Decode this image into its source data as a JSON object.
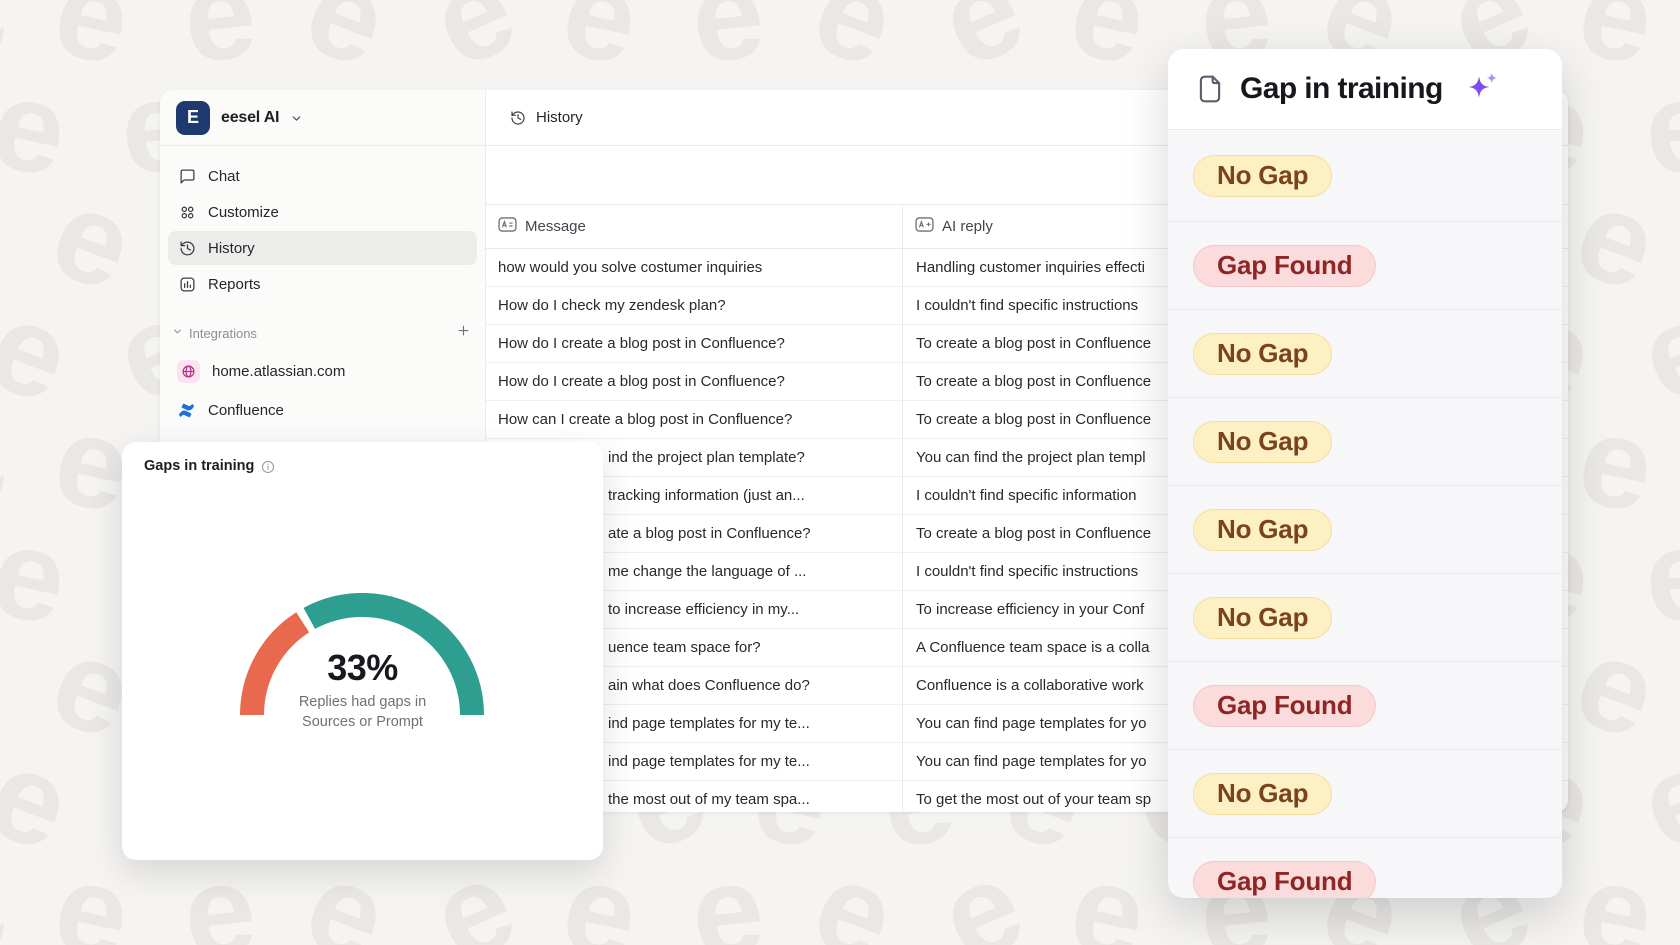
{
  "background": {
    "watermark_glyph": "e"
  },
  "workspace": {
    "name": "eesel AI"
  },
  "sidebar": {
    "nav": [
      {
        "icon": "chat-icon",
        "label": "Chat",
        "selected": false
      },
      {
        "icon": "customize-icon",
        "label": "Customize",
        "selected": false
      },
      {
        "icon": "history-icon",
        "label": "History",
        "selected": true
      },
      {
        "icon": "reports-icon",
        "label": "Reports",
        "selected": false
      }
    ],
    "integrations_label": "Integrations",
    "integrations": [
      {
        "icon": "globe-icon",
        "label": "home.atlassian.com"
      },
      {
        "icon": "confluence-icon",
        "label": "Confluence"
      }
    ]
  },
  "main": {
    "header_title": "History",
    "table": {
      "message_col": "Message",
      "reply_col": "AI reply",
      "rows": [
        {
          "message": "how would you solve costumer inquiries",
          "reply": "Handling customer inquiries effecti",
          "covered": false
        },
        {
          "message": "How do I check my zendesk plan?",
          "reply": "I couldn't find specific instructions",
          "covered": false
        },
        {
          "message": "How do I create a blog post in Confluence?",
          "reply": "To create a blog post in Confluence",
          "covered": false
        },
        {
          "message": "How do I create a blog post in Confluence?",
          "reply": "To create a blog post in Confluence",
          "covered": false
        },
        {
          "message": "How can I create a blog post in Confluence?",
          "reply": "To create a blog post in Confluence",
          "covered": false
        },
        {
          "message": "ind the project plan template?",
          "reply": "You can find the project plan templ",
          "covered": true
        },
        {
          "message": "tracking information (just an...",
          "reply": "I couldn't find specific information",
          "covered": true
        },
        {
          "message": "ate a blog post in Confluence?",
          "reply": "To create a blog post in Confluence",
          "covered": true
        },
        {
          "message": "me change the language of ...",
          "reply": "I couldn't find specific instructions",
          "covered": true
        },
        {
          "message": "to increase efficiency in my...",
          "reply": "To increase efficiency in your Conf",
          "covered": true
        },
        {
          "message": "uence team space for?",
          "reply": "A Confluence team space is a colla",
          "covered": true
        },
        {
          "message": "ain what does Confluence do?",
          "reply": "Confluence is a collaborative work",
          "covered": true
        },
        {
          "message": "ind page templates for my te...",
          "reply": "You can find page templates for yo",
          "covered": true
        },
        {
          "message": "ind page templates for my te...",
          "reply": "You can find page templates for yo",
          "covered": true
        },
        {
          "message": "the most out of my team spa...",
          "reply": "To get the most out of your team sp",
          "covered": true
        }
      ]
    }
  },
  "gauge_card": {
    "title": "Gaps in training",
    "value_label": "33%",
    "subtitle_line1": "Replies had gaps in",
    "subtitle_line2": "Sources or Prompt",
    "chart_data": {
      "type": "gauge",
      "value_pct": 33,
      "segments": [
        {
          "name": "Replies with gaps",
          "pct": 33,
          "color": "#E8694E"
        },
        {
          "name": "Replies without gaps",
          "pct": 67,
          "color": "#2D9E90"
        }
      ],
      "title": "Gaps in training",
      "center_label": "33%",
      "center_sublabel": "Replies had gaps in Sources or Prompt"
    }
  },
  "gap_panel": {
    "title": "Gap in training",
    "badges": [
      {
        "label": "No Gap",
        "type": "no-gap"
      },
      {
        "label": "Gap Found",
        "type": "gap-found"
      },
      {
        "label": "No Gap",
        "type": "no-gap"
      },
      {
        "label": "No Gap",
        "type": "no-gap"
      },
      {
        "label": "No Gap",
        "type": "no-gap"
      },
      {
        "label": "No Gap",
        "type": "no-gap"
      },
      {
        "label": "Gap Found",
        "type": "gap-found"
      },
      {
        "label": "No Gap",
        "type": "no-gap"
      },
      {
        "label": "Gap Found",
        "type": "gap-found"
      }
    ]
  },
  "colors": {
    "logo_navy": "#1E3A6F",
    "gauge_orange": "#E8694E",
    "gauge_teal": "#2D9E90",
    "no_gap_bg": "#FDF1C3",
    "no_gap_text": "#7B431C",
    "gap_found_bg": "#FBDBDB",
    "gap_found_text": "#8E2626",
    "sparkle_purple": "#7C4DF0",
    "confluence_blue": "#1F6FDB",
    "globe_pink": "#B23487"
  }
}
